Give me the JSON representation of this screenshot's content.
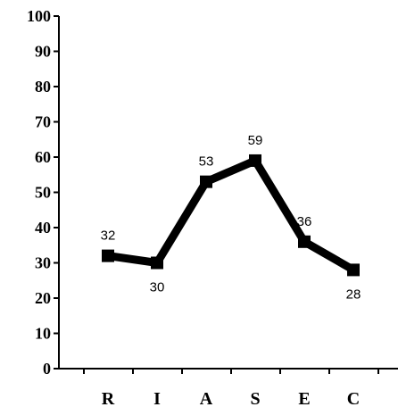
{
  "chart_data": {
    "type": "line",
    "categories": [
      "R",
      "I",
      "A",
      "S",
      "E",
      "C"
    ],
    "values": [
      32,
      30,
      53,
      59,
      36,
      28
    ],
    "data_labels": [
      "32",
      "30",
      "53",
      "59",
      "36",
      "28"
    ],
    "y_ticks": [
      "0",
      "10",
      "20",
      "30",
      "40",
      "50",
      "60",
      "70",
      "80",
      "90",
      "100"
    ],
    "ylim": [
      0,
      100
    ],
    "grid": false,
    "line_color": "#000000",
    "marker": "square"
  }
}
